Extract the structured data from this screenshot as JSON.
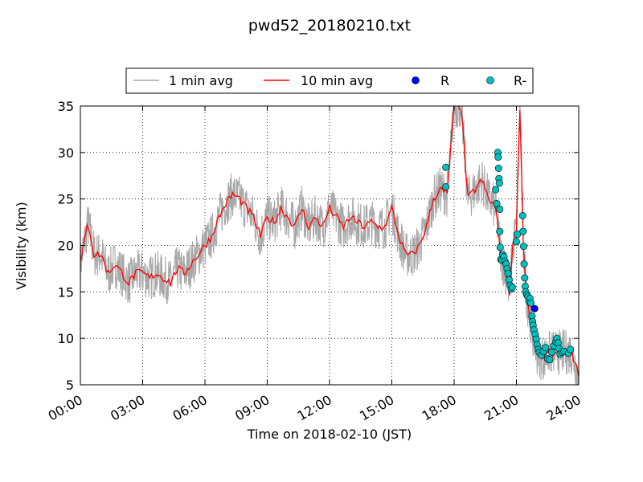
{
  "chart_data": {
    "type": "line",
    "title": "pwd52_20180210.txt",
    "xlabel": "Time on 2018-02-10 (JST)",
    "ylabel": "Visibility (km)",
    "xlim": [
      "00:00",
      "24:00"
    ],
    "ylim": [
      5,
      35
    ],
    "x_ticks": [
      "00:00",
      "03:00",
      "06:00",
      "09:00",
      "12:00",
      "15:00",
      "18:00",
      "21:00",
      "24:00"
    ],
    "y_ticks": [
      5,
      10,
      15,
      20,
      25,
      30,
      35
    ],
    "grid": true,
    "legend": {
      "placement": "top-center, above plot",
      "entries": [
        "1 min avg",
        "10 min avg",
        "R",
        "R-"
      ]
    },
    "colors": {
      "avg1": "#a8a8a8",
      "avg10": "#ff0000",
      "R": "#0000ff",
      "Rminus": "#00bfbf",
      "marker_edge": "#000000"
    },
    "series": [
      {
        "name": "1 min avg",
        "style": "line",
        "noise_amplitude_km": 2.5,
        "x": [
          "00:00",
          "00:20",
          "00:25",
          "00:40",
          "01:00",
          "01:20",
          "01:40",
          "02:00",
          "02:20",
          "02:40",
          "03:00",
          "03:20",
          "03:40",
          "04:00",
          "04:20",
          "04:40",
          "05:00",
          "05:20",
          "05:40",
          "06:00",
          "06:20",
          "06:40",
          "07:00",
          "07:20",
          "07:40",
          "08:00",
          "08:20",
          "08:40",
          "09:00",
          "09:20",
          "09:40",
          "10:00",
          "10:20",
          "10:40",
          "11:00",
          "11:20",
          "11:40",
          "12:00",
          "12:20",
          "12:40",
          "13:00",
          "13:20",
          "13:40",
          "14:00",
          "14:20",
          "14:40",
          "15:00",
          "15:20",
          "15:40",
          "16:00",
          "16:20",
          "16:40",
          "17:00",
          "17:20",
          "17:40",
          "18:00",
          "18:20",
          "18:40",
          "19:00",
          "19:20",
          "19:40",
          "20:00",
          "20:15",
          "20:30",
          "20:40",
          "20:50",
          "21:00",
          "21:10",
          "21:20",
          "21:30",
          "21:40",
          "21:50",
          "22:00",
          "22:10",
          "22:20",
          "22:40",
          "23:00",
          "23:20",
          "23:40",
          "24:00"
        ],
        "y": [
          18,
          22,
          22,
          19,
          19,
          17,
          18,
          17,
          16,
          17,
          17,
          16.5,
          17,
          16.5,
          16,
          17.5,
          17,
          18,
          19,
          20,
          21,
          23,
          24.5,
          25.5,
          25,
          24,
          23,
          21,
          23,
          22.5,
          24,
          23,
          22,
          24,
          22,
          23,
          22,
          24,
          23,
          22,
          23,
          22.5,
          22,
          22.5,
          22,
          22,
          24,
          21,
          19,
          19,
          20,
          22,
          25,
          26,
          25.5,
          35,
          35,
          25,
          26,
          27,
          25,
          24,
          19,
          17,
          15,
          20,
          22,
          35,
          20,
          14.5,
          12,
          10,
          8.5,
          8,
          8,
          8.5,
          8.5,
          8.5,
          8.5,
          6
        ]
      },
      {
        "name": "10 min avg",
        "style": "line",
        "x": [
          "00:00",
          "00:20",
          "00:25",
          "00:40",
          "01:00",
          "01:20",
          "01:40",
          "02:00",
          "02:20",
          "02:40",
          "03:00",
          "03:20",
          "03:40",
          "04:00",
          "04:20",
          "04:40",
          "05:00",
          "05:20",
          "05:40",
          "06:00",
          "06:20",
          "06:40",
          "07:00",
          "07:20",
          "07:40",
          "08:00",
          "08:20",
          "08:40",
          "09:00",
          "09:20",
          "09:40",
          "10:00",
          "10:20",
          "10:40",
          "11:00",
          "11:20",
          "11:40",
          "12:00",
          "12:20",
          "12:40",
          "13:00",
          "13:20",
          "13:40",
          "14:00",
          "14:20",
          "14:40",
          "15:00",
          "15:20",
          "15:40",
          "16:00",
          "16:20",
          "16:40",
          "17:00",
          "17:20",
          "17:40",
          "18:00",
          "18:20",
          "18:40",
          "19:00",
          "19:20",
          "19:40",
          "20:00",
          "20:15",
          "20:30",
          "20:40",
          "20:50",
          "21:00",
          "21:10",
          "21:20",
          "21:30",
          "21:40",
          "21:50",
          "22:00",
          "22:10",
          "22:20",
          "22:40",
          "23:00",
          "23:20",
          "23:40",
          "24:00"
        ],
        "y": [
          18,
          22,
          22,
          19,
          19,
          17,
          18,
          17,
          16,
          17,
          17,
          16.5,
          17,
          16.5,
          16,
          17.5,
          17,
          18,
          19,
          20,
          21,
          23,
          24.5,
          25.5,
          25,
          24,
          23,
          21,
          23,
          22.5,
          24,
          23,
          22,
          24,
          22,
          23,
          22,
          24,
          23,
          22,
          23,
          22.5,
          22,
          22.5,
          22,
          22,
          24,
          21,
          19,
          19,
          20,
          22,
          25,
          26,
          25.5,
          35,
          35,
          25,
          26,
          27,
          25,
          24,
          19,
          17,
          15,
          20,
          22,
          35,
          20,
          14.5,
          12,
          10,
          8.5,
          8,
          8,
          8.5,
          8.5,
          8.5,
          8.5,
          6
        ]
      },
      {
        "name": "R",
        "style": "markers",
        "points": [
          [
            21.88,
            13.2
          ]
        ]
      },
      {
        "name": "R-",
        "style": "markers",
        "points": [
          [
            17.6,
            28.4
          ],
          [
            17.6,
            26.3
          ],
          [
            20.0,
            26.0
          ],
          [
            20.05,
            24.5
          ],
          [
            20.1,
            30.0
          ],
          [
            20.12,
            29.5
          ],
          [
            20.14,
            28.3
          ],
          [
            20.16,
            27.2
          ],
          [
            20.18,
            26.7
          ],
          [
            20.2,
            23.9
          ],
          [
            20.2,
            21.5
          ],
          [
            20.22,
            19.8
          ],
          [
            20.25,
            18.5
          ],
          [
            20.3,
            18.4
          ],
          [
            20.35,
            19.0
          ],
          [
            20.4,
            18.8
          ],
          [
            20.45,
            18.3
          ],
          [
            20.5,
            18.0
          ],
          [
            20.55,
            17.5
          ],
          [
            20.6,
            17.0
          ],
          [
            20.65,
            16.3
          ],
          [
            20.7,
            15.7
          ],
          [
            20.75,
            15.3
          ],
          [
            20.8,
            15.5
          ],
          [
            21.0,
            20.4
          ],
          [
            21.05,
            21.2
          ],
          [
            21.3,
            23.2
          ],
          [
            21.32,
            21.5
          ],
          [
            21.35,
            19.9
          ],
          [
            21.37,
            18.0
          ],
          [
            21.4,
            16.5
          ],
          [
            21.42,
            15.6
          ],
          [
            21.45,
            15.0
          ],
          [
            21.5,
            14.7
          ],
          [
            21.55,
            14.5
          ],
          [
            21.6,
            14.0
          ],
          [
            21.65,
            14.3
          ],
          [
            21.7,
            13.8
          ],
          [
            21.75,
            12.4
          ],
          [
            21.78,
            11.8
          ],
          [
            21.8,
            11.4
          ],
          [
            21.85,
            10.9
          ],
          [
            21.9,
            10.4
          ],
          [
            21.95,
            9.9
          ],
          [
            22.0,
            9.3
          ],
          [
            22.05,
            8.8
          ],
          [
            22.1,
            8.5
          ],
          [
            22.2,
            8.2
          ],
          [
            22.3,
            8.6
          ],
          [
            22.4,
            9.0
          ],
          [
            22.5,
            7.8
          ],
          [
            22.6,
            7.7
          ],
          [
            22.7,
            8.5
          ],
          [
            22.8,
            9.2
          ],
          [
            22.9,
            9.6
          ],
          [
            22.95,
            10.0
          ],
          [
            23.0,
            9.5
          ],
          [
            23.05,
            8.9
          ],
          [
            23.1,
            8.3
          ],
          [
            23.2,
            8.5
          ],
          [
            23.3,
            8.6
          ],
          [
            23.5,
            8.4
          ],
          [
            23.6,
            8.8
          ]
        ]
      }
    ]
  }
}
